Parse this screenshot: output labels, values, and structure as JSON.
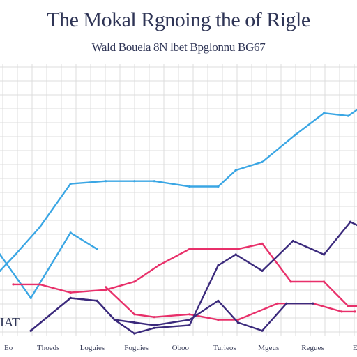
{
  "chart_data": {
    "type": "line",
    "title": "The Mokal Rgnoing the of Rigle",
    "subtitle": "Wald Bouela 8N lbet Bpglonnu BG67",
    "corner_label": "IAT",
    "categories": [
      "Eo",
      "Thoeds",
      "Loguies",
      "Foguies",
      "Oboo",
      "Turieos",
      "Mgeus",
      "Regues",
      "Ee"
    ],
    "grid": true,
    "ylim": [
      0,
      100
    ],
    "series": [
      {
        "color": "#3aa6e4",
        "x": [
          0,
          0.35,
          0.9,
          1.6,
          2.4,
          3.05,
          3.5,
          4.3,
          4.95,
          5.35,
          5.95,
          6.7,
          7.35,
          7.9,
          8.35,
          8.8
        ],
        "y": [
          24,
          30,
          40,
          56,
          57,
          57,
          57,
          55,
          55,
          61,
          64,
          74,
          82,
          81,
          86,
          83
        ]
      },
      {
        "color": "#3aa6e4",
        "x": [
          0,
          0.7,
          1.6,
          2.2
        ],
        "y": [
          30,
          14,
          38,
          32
        ]
      },
      {
        "color": "#e8306a",
        "x": [
          0.3,
          0.9,
          1.6,
          2.4,
          3.05,
          3.6,
          4.3,
          4.95,
          5.4,
          5.95,
          6.6,
          7.35,
          7.9,
          8.35
        ],
        "y": [
          19,
          19,
          16,
          17,
          20,
          26,
          32,
          32,
          32,
          34,
          20,
          20,
          11,
          11
        ]
      },
      {
        "color": "#e8306a",
        "x": [
          2.4,
          3.05,
          3.5,
          4.3,
          4.95,
          5.4,
          6.3,
          7.1,
          7.75,
          8.05
        ],
        "y": [
          18,
          8,
          7,
          8,
          6,
          6,
          12,
          12,
          9,
          9
        ]
      },
      {
        "color": "#3b2a7c",
        "x": [
          0.7,
          1.6,
          2.2,
          2.6,
          3.05,
          3.5,
          4.3,
          4.95,
          5.35,
          5.95,
          6.65,
          7.35,
          7.95,
          8.2,
          8.8
        ],
        "y": [
          2,
          14,
          13,
          6,
          1,
          3,
          4,
          26,
          30,
          24,
          35,
          30,
          42,
          40,
          44
        ]
      },
      {
        "color": "#3b2a7c",
        "x": [
          0.7,
          1.6,
          2.2,
          2.6,
          3.05,
          3.5,
          4.3,
          4.95,
          5.4,
          5.95,
          6.5,
          7.1
        ],
        "y": [
          2,
          14,
          13,
          6,
          5,
          4,
          6,
          13,
          5,
          2,
          12,
          12
        ]
      }
    ]
  }
}
